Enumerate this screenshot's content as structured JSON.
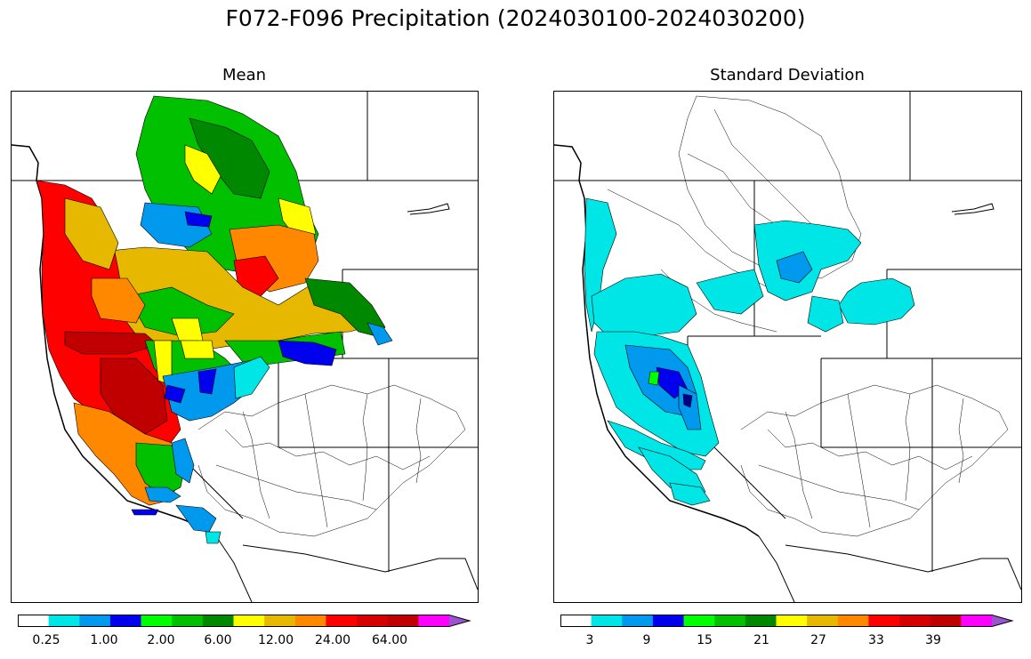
{
  "figure": {
    "title": "F072-F096 Precipitation (2024030100-2024030200)"
  },
  "panels": [
    {
      "title": "Mean",
      "colorbar": {
        "colors": [
          "#ffffff",
          "#00e5e5",
          "#0099ee",
          "#0000ee",
          "#00ff00",
          "#00c000",
          "#008800",
          "#ffff00",
          "#e6b800",
          "#ff8800",
          "#ff0000",
          "#d60000",
          "#c00000",
          "#ff00ff",
          "#9955cc"
        ],
        "tick_labels": [
          "0.25",
          "1.00",
          "2.00",
          "6.00",
          "12.00",
          "24.00",
          "64.00"
        ]
      }
    },
    {
      "title": "Standard Deviation",
      "colorbar": {
        "colors": [
          "#ffffff",
          "#00e5e5",
          "#0099ee",
          "#0000ee",
          "#00ff00",
          "#00c000",
          "#008800",
          "#ffff00",
          "#e6b800",
          "#ff8800",
          "#ff0000",
          "#d60000",
          "#c00000",
          "#ff00ff",
          "#9955cc"
        ],
        "tick_labels": [
          "3",
          "9",
          "15",
          "21",
          "27",
          "33",
          "39"
        ]
      }
    }
  ]
}
